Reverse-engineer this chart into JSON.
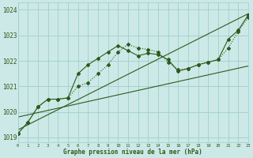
{
  "title": "Graphe pression niveau de la mer (hPa)",
  "bg_color": "#cce9e7",
  "grid_color": "#9ecfcc",
  "line_color": "#2d5a1b",
  "series": [
    {
      "x": [
        0,
        1,
        2,
        3,
        4,
        5,
        6,
        7,
        8,
        9,
        10,
        11,
        12,
        13,
        14,
        15,
        16,
        17,
        18,
        19,
        20,
        21,
        22,
        23
      ],
      "y": [
        1019.15,
        1019.6,
        1020.2,
        1020.5,
        1020.5,
        1020.55,
        1021.0,
        1021.15,
        1021.5,
        1021.85,
        1022.35,
        1022.65,
        1022.5,
        1022.45,
        1022.35,
        1021.95,
        1021.65,
        1021.7,
        1021.85,
        1021.95,
        1022.05,
        1022.5,
        1023.15,
        1023.7
      ],
      "linestyle": "dotted",
      "marker": "D",
      "markersize": 2.0,
      "linewidth": 0.8
    },
    {
      "x": [
        0,
        1,
        2,
        3,
        4,
        5,
        6,
        7,
        8,
        9,
        10,
        11,
        12,
        13,
        14,
        15,
        16,
        17,
        18,
        19,
        20,
        21,
        22,
        23
      ],
      "y": [
        1019.15,
        1019.6,
        1020.2,
        1020.5,
        1020.5,
        1020.55,
        1021.5,
        1021.85,
        1022.1,
        1022.35,
        1022.6,
        1022.4,
        1022.2,
        1022.3,
        1022.25,
        1022.05,
        1021.6,
        1021.7,
        1021.85,
        1021.95,
        1022.05,
        1022.85,
        1023.2,
        1023.8
      ],
      "linestyle": "solid",
      "marker": "D",
      "markersize": 2.0,
      "linewidth": 0.8
    },
    {
      "x": [
        0,
        23
      ],
      "y": [
        1019.8,
        1021.8
      ],
      "linestyle": "solid",
      "marker": null,
      "markersize": 0,
      "linewidth": 0.8
    },
    {
      "x": [
        0,
        23
      ],
      "y": [
        1019.3,
        1023.85
      ],
      "linestyle": "solid",
      "marker": null,
      "markersize": 0,
      "linewidth": 0.8
    }
  ],
  "xlim": [
    0,
    23
  ],
  "ylim": [
    1018.8,
    1024.3
  ],
  "yticks": [
    1019,
    1020,
    1021,
    1022,
    1023,
    1024
  ],
  "xticks": [
    0,
    1,
    2,
    3,
    4,
    5,
    6,
    7,
    8,
    9,
    10,
    11,
    12,
    13,
    14,
    15,
    16,
    17,
    18,
    19,
    20,
    21,
    22,
    23
  ]
}
